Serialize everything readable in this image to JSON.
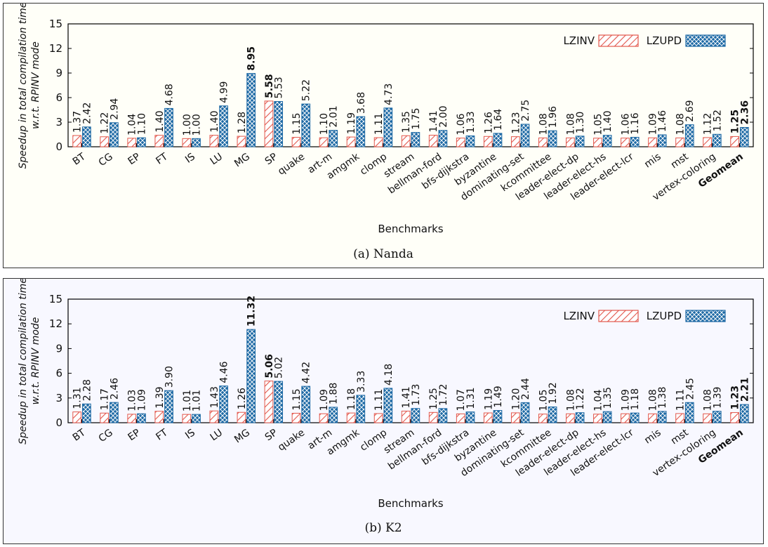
{
  "colors": {
    "lzinv": "#e2574c",
    "lzupd": "#1f6aa5",
    "geomean_bold": true
  },
  "chart_data": [
    {
      "type": "bar",
      "caption": "(a) Nanda",
      "xlabel": "Benchmarks",
      "ylabel_line1": "Speedup in total compilation time",
      "ylabel_line2": "w.r.t. RPINV mode",
      "ylim": [
        0,
        15
      ],
      "yticks": [
        0,
        3,
        6,
        9,
        12,
        15
      ],
      "legend_position": "top-right",
      "categories": [
        "BT",
        "CG",
        "EP",
        "FT",
        "IS",
        "LU",
        "MG",
        "SP",
        "quake",
        "art-m",
        "amgmk",
        "clomp",
        "stream",
        "bellman-ford",
        "bfs-dijkstra",
        "byzantine",
        "dominating-set",
        "kcommittee",
        "leader-elect-dp",
        "leader-elect-hs",
        "leader-elect-lcr",
        "mis",
        "mst",
        "vertex-coloring",
        "Geomean"
      ],
      "series": [
        {
          "name": "LZINV",
          "values": [
            1.37,
            1.22,
            1.04,
            1.4,
            1.0,
            1.4,
            1.28,
            5.58,
            1.15,
            1.1,
            1.19,
            1.11,
            1.35,
            1.41,
            1.06,
            1.26,
            1.23,
            1.08,
            1.08,
            1.05,
            1.06,
            1.09,
            1.08,
            1.12,
            1.25
          ]
        },
        {
          "name": "LZUPD",
          "values": [
            2.42,
            2.94,
            1.1,
            4.68,
            1.0,
            4.99,
            8.95,
            5.53,
            5.22,
            2.01,
            3.68,
            4.73,
            1.75,
            2.0,
            1.33,
            1.64,
            2.75,
            1.96,
            1.3,
            1.4,
            1.16,
            1.46,
            2.69,
            1.52,
            2.36
          ]
        }
      ],
      "labels": [
        [
          "1.37",
          "1.22",
          "1.04",
          "1.40",
          "1.00",
          "1.40",
          "1.28",
          "5.58",
          "1.15",
          "1.10",
          "1.19",
          "1.11",
          "1.35",
          "1.41",
          "1.06",
          "1.26",
          "1.23",
          "1.08",
          "1.08",
          "1.05",
          "1.06",
          "1.09",
          "1.08",
          "1.12",
          "1.25"
        ],
        [
          "2.42",
          "2.94",
          "1.10",
          "4.68",
          "1.00",
          "4.99",
          "8.95",
          "5.53",
          "5.22",
          "2.01",
          "3.68",
          "4.73",
          "1.75",
          "2.00",
          "1.33",
          "1.64",
          "2.75",
          "1.96",
          "1.30",
          "1.40",
          "1.16",
          "1.46",
          "2.69",
          "1.52",
          "2.36"
        ]
      ],
      "bold_labels": [
        [
          7,
          0
        ],
        [
          6,
          1
        ],
        [
          24,
          0
        ],
        [
          24,
          1
        ]
      ]
    },
    {
      "type": "bar",
      "caption": "(b) K2",
      "xlabel": "Benchmarks",
      "ylabel_line1": "Speedup in total compilation time",
      "ylabel_line2": "w.r.t. RPINV mode",
      "ylim": [
        0,
        15
      ],
      "yticks": [
        0,
        3,
        6,
        9,
        12,
        15
      ],
      "legend_position": "top-right",
      "categories": [
        "BT",
        "CG",
        "EP",
        "FT",
        "IS",
        "LU",
        "MG",
        "SP",
        "quake",
        "art-m",
        "amgmk",
        "clomp",
        "stream",
        "bellman-ford",
        "bfs-dijkstra",
        "byzantine",
        "dominating-set",
        "kcommittee",
        "leader-elect-dp",
        "leader-elect-hs",
        "leader-elect-lcr",
        "mis",
        "mst",
        "vertex-coloring",
        "Geomean"
      ],
      "series": [
        {
          "name": "LZINV",
          "values": [
            1.31,
            1.17,
            1.03,
            1.39,
            1.01,
            1.43,
            1.26,
            5.06,
            1.15,
            1.09,
            1.18,
            1.11,
            1.41,
            1.25,
            1.07,
            1.19,
            1.2,
            1.05,
            1.08,
            1.04,
            1.09,
            1.08,
            1.11,
            1.08,
            1.23
          ]
        },
        {
          "name": "LZUPD",
          "values": [
            2.28,
            2.46,
            1.09,
            3.9,
            1.01,
            4.46,
            11.32,
            5.02,
            4.42,
            1.88,
            3.33,
            4.18,
            1.73,
            1.72,
            1.31,
            1.49,
            2.44,
            1.92,
            1.22,
            1.35,
            1.18,
            1.38,
            2.45,
            1.39,
            2.21
          ]
        }
      ],
      "labels": [
        [
          "1.31",
          "1.17",
          "1.03",
          "1.39",
          "1.01",
          "1.43",
          "1.26",
          "5.06",
          "1.15",
          "1.09",
          "1.18",
          "1.11",
          "1.41",
          "1.25",
          "1.07",
          "1.19",
          "1.20",
          "1.05",
          "1.08",
          "1.04",
          "1.09",
          "1.08",
          "1.11",
          "1.08",
          "1.23"
        ],
        [
          "2.28",
          "2.46",
          "1.09",
          "3.90",
          "1.01",
          "4.46",
          "11.32",
          "5.02",
          "4.42",
          "1.88",
          "3.33",
          "4.18",
          "1.73",
          "1.72",
          "1.31",
          "1.49",
          "2.44",
          "1.92",
          "1.22",
          "1.35",
          "1.18",
          "1.38",
          "2.45",
          "1.39",
          "2.21"
        ]
      ],
      "bold_labels": [
        [
          7,
          0
        ],
        [
          6,
          1
        ],
        [
          24,
          0
        ],
        [
          24,
          1
        ]
      ]
    }
  ]
}
